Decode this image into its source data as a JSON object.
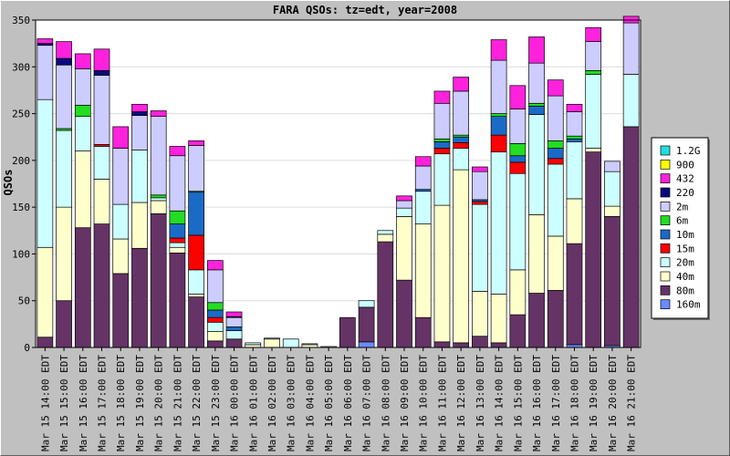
{
  "chart_data": {
    "type": "bar",
    "stacked": true,
    "title": "FARA QSOs: tz=edt, year=2008",
    "xlabel": "",
    "ylabel": "QSOs",
    "ylim": [
      0,
      350
    ],
    "yticks": [
      0,
      50,
      100,
      150,
      200,
      250,
      300,
      350
    ],
    "grid": true,
    "legend_position": "right",
    "categories": [
      "Mar 15 14:00 EDT",
      "Mar 15 15:00 EDT",
      "Mar 15 16:00 EDT",
      "Mar 15 17:00 EDT",
      "Mar 15 18:00 EDT",
      "Mar 15 19:00 EDT",
      "Mar 15 20:00 EDT",
      "Mar 15 21:00 EDT",
      "Mar 15 22:00 EDT",
      "Mar 15 23:00 EDT",
      "Mar 16 00:00 EDT",
      "Mar 16 01:00 EDT",
      "Mar 16 02:00 EDT",
      "Mar 16 03:00 EDT",
      "Mar 16 04:00 EDT",
      "Mar 16 05:00 EDT",
      "Mar 16 06:00 EDT",
      "Mar 16 07:00 EDT",
      "Mar 16 08:00 EDT",
      "Mar 16 09:00 EDT",
      "Mar 16 10:00 EDT",
      "Mar 16 11:00 EDT",
      "Mar 16 12:00 EDT",
      "Mar 16 13:00 EDT",
      "Mar 16 14:00 EDT",
      "Mar 16 15:00 EDT",
      "Mar 16 16:00 EDT",
      "Mar 16 17:00 EDT",
      "Mar 16 18:00 EDT",
      "Mar 16 19:00 EDT",
      "Mar 16 20:00 EDT",
      "Mar 16 21:00 EDT"
    ],
    "series": [
      {
        "name": "160m",
        "color": "#6b8cff",
        "values": [
          0,
          0,
          0,
          0,
          0,
          0,
          0,
          0,
          0,
          0,
          0,
          0,
          0,
          0,
          0,
          0,
          0,
          6,
          0,
          0,
          0,
          0,
          0,
          0,
          0,
          0,
          0,
          0,
          3,
          0,
          2,
          0
        ]
      },
      {
        "name": "80m",
        "color": "#663366",
        "values": [
          11,
          50,
          128,
          132,
          79,
          106,
          143,
          101,
          54,
          7,
          9,
          0,
          0,
          0,
          0,
          0,
          32,
          37,
          113,
          72,
          32,
          6,
          5,
          12,
          5,
          35,
          58,
          61,
          108,
          209,
          138,
          236
        ]
      },
      {
        "name": "40m",
        "color": "#ffffcc",
        "values": [
          96,
          100,
          82,
          48,
          37,
          49,
          14,
          6,
          3,
          10,
          0,
          3,
          9,
          0,
          3,
          0,
          0,
          0,
          8,
          68,
          100,
          146,
          185,
          48,
          52,
          48,
          84,
          58,
          48,
          4,
          11,
          0
        ]
      },
      {
        "name": "20m",
        "color": "#ccffff",
        "values": [
          158,
          82,
          37,
          35,
          37,
          56,
          3,
          5,
          26,
          10,
          9,
          2,
          0,
          9,
          1,
          1,
          0,
          7,
          4,
          9,
          35,
          55,
          23,
          93,
          152,
          103,
          107,
          77,
          61,
          79,
          37,
          56
        ]
      },
      {
        "name": "15m",
        "color": "#ff0000",
        "values": [
          0,
          0,
          0,
          2,
          0,
          0,
          0,
          5,
          37,
          5,
          0,
          0,
          0,
          0,
          0,
          0,
          0,
          0,
          0,
          0,
          0,
          6,
          6,
          3,
          18,
          12,
          0,
          6,
          0,
          0,
          0,
          0
        ]
      },
      {
        "name": "10m",
        "color": "#1a6bc7",
        "values": [
          0,
          0,
          0,
          0,
          0,
          0,
          0,
          15,
          46,
          8,
          4,
          0,
          0,
          0,
          0,
          0,
          0,
          0,
          0,
          0,
          2,
          7,
          6,
          2,
          20,
          7,
          9,
          11,
          3,
          0,
          0,
          0
        ]
      },
      {
        "name": "6m",
        "color": "#22dd22",
        "values": [
          0,
          2,
          12,
          0,
          0,
          0,
          3,
          14,
          1,
          8,
          0,
          0,
          0,
          0,
          0,
          0,
          0,
          0,
          0,
          0,
          0,
          3,
          2,
          0,
          3,
          13,
          3,
          8,
          3,
          4,
          0,
          0
        ]
      },
      {
        "name": "2m",
        "color": "#ccccff",
        "values": [
          58,
          68,
          39,
          74,
          60,
          37,
          84,
          59,
          49,
          35,
          10,
          0,
          1,
          0,
          0,
          0,
          0,
          0,
          0,
          8,
          25,
          38,
          47,
          30,
          57,
          37,
          43,
          48,
          26,
          31,
          11,
          55
        ]
      },
      {
        "name": "220",
        "color": "#0a0a80",
        "values": [
          2,
          7,
          0,
          5,
          0,
          4,
          0,
          0,
          0,
          0,
          1,
          0,
          0,
          0,
          0,
          0,
          0,
          0,
          0,
          0,
          0,
          0,
          0,
          0,
          0,
          0,
          0,
          0,
          0,
          0,
          0,
          0
        ]
      },
      {
        "name": "432",
        "color": "#ff22dd",
        "values": [
          5,
          18,
          16,
          23,
          23,
          8,
          6,
          10,
          5,
          10,
          5,
          0,
          0,
          0,
          0,
          0,
          0,
          0,
          0,
          5,
          10,
          13,
          15,
          5,
          22,
          25,
          28,
          17,
          8,
          15,
          0,
          7
        ]
      },
      {
        "name": "900",
        "color": "#ffff00",
        "values": [
          0,
          0,
          0,
          0,
          0,
          0,
          0,
          0,
          0,
          0,
          0,
          0,
          0,
          0,
          0,
          0,
          0,
          0,
          0,
          0,
          0,
          0,
          0,
          0,
          0,
          0,
          0,
          0,
          0,
          0,
          0,
          0
        ]
      },
      {
        "name": "1.2G",
        "color": "#22dddd",
        "values": [
          0,
          0,
          0,
          0,
          0,
          0,
          0,
          0,
          0,
          0,
          0,
          0,
          0,
          0,
          0,
          0,
          0,
          0,
          0,
          0,
          0,
          0,
          0,
          0,
          0,
          0,
          0,
          0,
          0,
          0,
          0,
          0
        ]
      }
    ]
  }
}
